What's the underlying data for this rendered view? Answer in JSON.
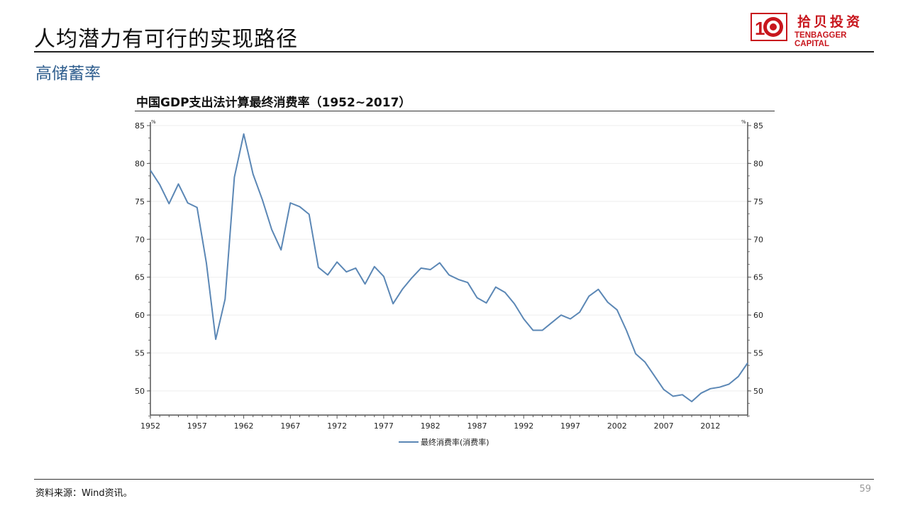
{
  "slide": {
    "title": "人均潜力有可行的实现路径",
    "subtitle": "高储蓄率",
    "logo": {
      "cn": "拾贝投资",
      "en": "TENBAGGER CAPITAL",
      "color": "#c8161d"
    },
    "source": "资料来源：Wind资讯。",
    "page_number": "59"
  },
  "chart_data": {
    "type": "line",
    "title": "中国GDP支出法计算最终消费率（1952~2017）",
    "y_unit_left": "%",
    "y_unit_right": "%",
    "ylim": [
      46.7,
      85
    ],
    "y_ticks": [
      50,
      55,
      60,
      65,
      70,
      75,
      80,
      85
    ],
    "x_tick_labels": [
      "1952",
      "1957",
      "1962",
      "1967",
      "1972",
      "1977",
      "1982",
      "1987",
      "1992",
      "1997",
      "2002",
      "2007",
      "2012"
    ],
    "grid": true,
    "legend_position": "bottom",
    "series": [
      {
        "name": "最终消费率(消费率)",
        "color": "#5b87b5",
        "x": [
          1952,
          1953,
          1954,
          1955,
          1956,
          1957,
          1958,
          1959,
          1960,
          1961,
          1962,
          1963,
          1964,
          1965,
          1966,
          1967,
          1968,
          1969,
          1970,
          1971,
          1972,
          1973,
          1974,
          1975,
          1976,
          1977,
          1978,
          1979,
          1980,
          1981,
          1982,
          1983,
          1984,
          1985,
          1986,
          1987,
          1988,
          1989,
          1990,
          1991,
          1992,
          1993,
          1994,
          1995,
          1996,
          1997,
          1998,
          1999,
          2000,
          2001,
          2002,
          2003,
          2004,
          2005,
          2006,
          2007,
          2008,
          2009,
          2010,
          2011,
          2012,
          2013,
          2014,
          2015,
          2016
        ],
        "values": [
          79.1,
          77.2,
          74.7,
          77.3,
          74.8,
          74.2,
          66.9,
          56.8,
          62.1,
          78.2,
          83.9,
          78.6,
          75.2,
          71.3,
          68.6,
          74.8,
          74.3,
          73.3,
          66.3,
          65.3,
          67.0,
          65.7,
          66.2,
          64.1,
          66.4,
          65.1,
          61.5,
          63.4,
          64.9,
          66.2,
          66.0,
          66.9,
          65.3,
          64.7,
          64.3,
          62.3,
          61.6,
          63.7,
          63.0,
          61.5,
          59.5,
          58.0,
          58.0,
          59.0,
          60.0,
          59.5,
          60.4,
          62.5,
          63.4,
          61.7,
          60.7,
          58.0,
          54.9,
          53.8,
          52.0,
          50.2,
          49.3,
          49.5,
          48.6,
          49.7,
          50.3,
          50.5,
          50.9,
          51.9,
          53.7
        ]
      }
    ]
  }
}
